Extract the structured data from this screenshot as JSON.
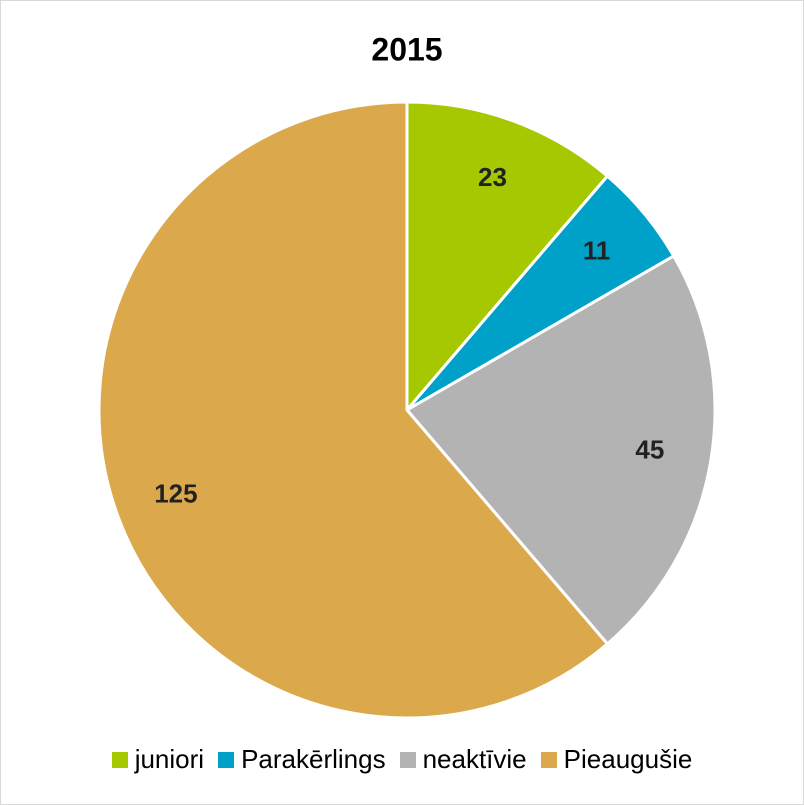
{
  "chart_data": {
    "type": "pie",
    "title": "2015",
    "categories": [
      "juniori",
      "Parakērlings",
      "neaktīvie",
      "Pieaugušie"
    ],
    "values": [
      23,
      11,
      45,
      125
    ],
    "colors": [
      "#a5c800",
      "#00a1c9",
      "#b3b3b3",
      "#dba94b"
    ],
    "legend": "bottom"
  }
}
